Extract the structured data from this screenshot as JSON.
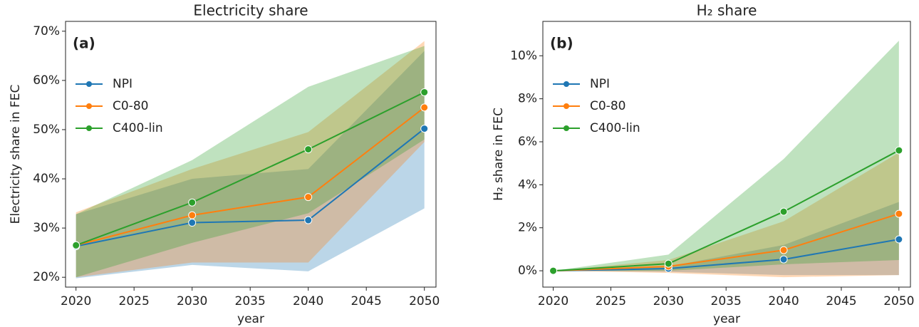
{
  "chart_data": [
    {
      "type": "line",
      "title": "Electricity share",
      "panel_label": "(a)",
      "x_label": "year",
      "y_label": "Electricity share in FEC",
      "x": [
        2020,
        2030,
        2040,
        2050
      ],
      "xlim": [
        2019.1,
        2051
      ],
      "xticks": [
        2020,
        2025,
        2030,
        2035,
        2040,
        2045,
        2050
      ],
      "ylim": [
        18,
        72
      ],
      "yticks": [
        {
          "value": 20,
          "label": "20%"
        },
        {
          "value": 30,
          "label": "30%"
        },
        {
          "value": 40,
          "label": "40%"
        },
        {
          "value": 50,
          "label": "50%"
        },
        {
          "value": 60,
          "label": "60%"
        },
        {
          "value": 70,
          "label": "70%"
        }
      ],
      "legend": "upper left",
      "series": [
        {
          "name": "NPI",
          "color": "#1f77b4",
          "values": [
            26.3,
            31.1,
            31.6,
            50.2
          ],
          "lower": [
            19.8,
            22.5,
            21.2,
            34
          ],
          "upper": [
            32.8,
            40,
            42,
            66
          ]
        },
        {
          "name": "C0-80",
          "color": "#ff7f0e",
          "values": [
            26.5,
            32.6,
            36.3,
            54.5
          ],
          "lower": [
            20,
            23,
            23,
            47.5
          ],
          "upper": [
            33.2,
            42,
            49.5,
            68
          ]
        },
        {
          "name": "C400-lin",
          "color": "#2ca02c",
          "values": [
            26.5,
            35.2,
            46,
            57.6
          ],
          "lower": [
            20,
            27,
            33,
            48
          ],
          "upper": [
            32.8,
            43.8,
            58.7,
            67
          ]
        }
      ]
    },
    {
      "type": "line",
      "title": "H₂ share",
      "panel_label": "(b)",
      "x_label": "year",
      "y_label": "H₂ share in FEC",
      "x": [
        2020,
        2030,
        2040,
        2050
      ],
      "xlim": [
        2019.1,
        2051
      ],
      "xticks": [
        2020,
        2025,
        2030,
        2035,
        2040,
        2045,
        2050
      ],
      "ylim": [
        -0.76,
        11.6
      ],
      "yticks": [
        {
          "value": 0,
          "label": "0%"
        },
        {
          "value": 2,
          "label": "2%"
        },
        {
          "value": 4,
          "label": "4%"
        },
        {
          "value": 6,
          "label": "6%"
        },
        {
          "value": 8,
          "label": "8%"
        },
        {
          "value": 10,
          "label": "10%"
        }
      ],
      "legend": "upper left",
      "series": [
        {
          "name": "NPI",
          "color": "#1f77b4",
          "values": [
            0,
            0.1,
            0.53,
            1.46
          ],
          "lower": [
            0,
            -0.05,
            -0.2,
            -0.2
          ],
          "upper": [
            0,
            0.2,
            1.2,
            3.2
          ]
        },
        {
          "name": "C0-80",
          "color": "#ff7f0e",
          "values": [
            0,
            0.2,
            0.96,
            2.65
          ],
          "lower": [
            0,
            -0.1,
            -0.3,
            -0.2
          ],
          "upper": [
            0,
            0.5,
            2.3,
            5.5
          ]
        },
        {
          "name": "C400-lin",
          "color": "#2ca02c",
          "values": [
            0,
            0.33,
            2.75,
            5.6
          ],
          "lower": [
            0,
            0,
            0.3,
            0.5
          ],
          "upper": [
            0,
            0.75,
            5.2,
            10.7
          ]
        }
      ]
    }
  ]
}
